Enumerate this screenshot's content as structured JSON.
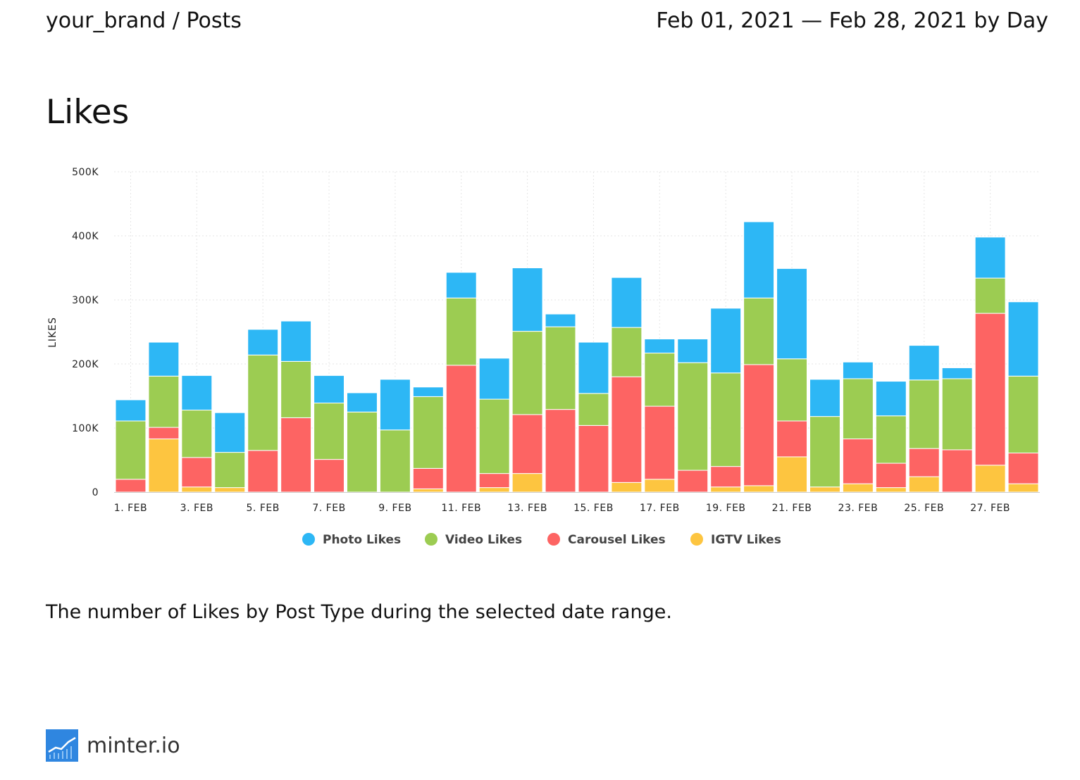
{
  "header": {
    "breadcrumb": "your_brand / Posts",
    "date_range": "Feb 01, 2021 — Feb 28, 2021 by Day"
  },
  "section_title": "Likes",
  "description": "The number of Likes by Post Type during the selected date range.",
  "footer": {
    "brand": "minter.io",
    "logo_icon": "minter-logo-icon"
  },
  "colors": {
    "photo": "#2db7f5",
    "video": "#9ccc52",
    "carousel": "#fd6463",
    "igtv": "#fdc540",
    "grid": "#e6e6e6"
  },
  "chart_data": {
    "type": "bar",
    "stacked": true,
    "title": "Likes",
    "xlabel": "",
    "ylabel": "LIKES",
    "ylim": [
      0,
      500000
    ],
    "yticks": [
      0,
      100000,
      200000,
      300000,
      400000,
      500000
    ],
    "ytick_labels": [
      "0",
      "100K",
      "200K",
      "300K",
      "400K",
      "500K"
    ],
    "categories": [
      "1. FEB",
      "2. FEB",
      "3. FEB",
      "4. FEB",
      "5. FEB",
      "6. FEB",
      "7. FEB",
      "8. FEB",
      "9. FEB",
      "10. FEB",
      "11. FEB",
      "12. FEB",
      "13. FEB",
      "14. FEB",
      "15. FEB",
      "16. FEB",
      "17. FEB",
      "18. FEB",
      "19. FEB",
      "20. FEB",
      "21. FEB",
      "22. FEB",
      "23. FEB",
      "24. FEB",
      "25. FEB",
      "26. FEB",
      "27. FEB",
      "28. FEB"
    ],
    "xtick_labels": [
      "1. FEB",
      "3. FEB",
      "5. FEB",
      "7. FEB",
      "9. FEB",
      "11. FEB",
      "13. FEB",
      "15. FEB",
      "17. FEB",
      "19. FEB",
      "21. FEB",
      "23. FEB",
      "25. FEB",
      "27. FEB"
    ],
    "legend_position": "bottom-center",
    "series": [
      {
        "name": "IGTV Likes",
        "key": "igtv",
        "values": [
          0,
          83000,
          8000,
          7000,
          0,
          0,
          0,
          0,
          0,
          5000,
          0,
          7000,
          29000,
          0,
          0,
          15000,
          20000,
          0,
          8000,
          10000,
          55000,
          8000,
          13000,
          7000,
          24000,
          0,
          42000,
          13000
        ]
      },
      {
        "name": "Carousel Likes",
        "key": "carousel",
        "values": [
          20000,
          18000,
          46000,
          0,
          65000,
          116000,
          51000,
          0,
          0,
          32000,
          198000,
          22000,
          92000,
          129000,
          104000,
          165000,
          114000,
          34000,
          32000,
          189000,
          56000,
          0,
          70000,
          38000,
          44000,
          66000,
          237000,
          48000
        ]
      },
      {
        "name": "Video Likes",
        "key": "video",
        "values": [
          91000,
          80000,
          74000,
          55000,
          149000,
          88000,
          88000,
          125000,
          97000,
          112000,
          105000,
          116000,
          130000,
          129000,
          50000,
          77000,
          83000,
          168000,
          146000,
          104000,
          97000,
          110000,
          94000,
          74000,
          107000,
          111000,
          55000,
          120000
        ]
      },
      {
        "name": "Photo Likes",
        "key": "photo",
        "values": [
          33000,
          53000,
          54000,
          62000,
          40000,
          63000,
          43000,
          30000,
          79000,
          15000,
          40000,
          64000,
          99000,
          20000,
          80000,
          78000,
          22000,
          37000,
          101000,
          119000,
          141000,
          58000,
          26000,
          54000,
          54000,
          17000,
          64000,
          116000
        ]
      }
    ],
    "legend_order": [
      "Photo Likes",
      "Video Likes",
      "Carousel Likes",
      "IGTV Likes"
    ]
  }
}
